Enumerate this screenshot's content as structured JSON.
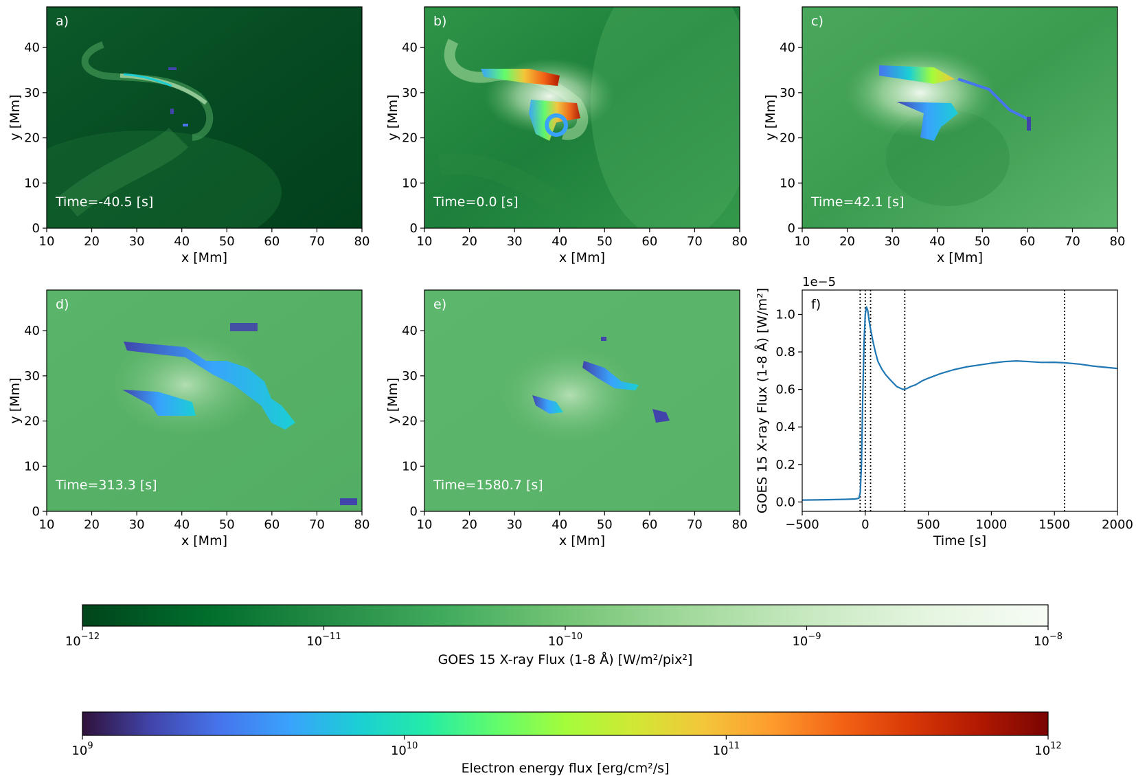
{
  "chart_data": [
    {
      "type": "heatmap",
      "panel_label": "a)",
      "time_label": "Time=-40.5 [s]",
      "xlabel": "x [Mm]",
      "ylabel": "y [Mm]",
      "xlim": [
        10,
        80
      ],
      "ylim": [
        0,
        49
      ],
      "xticks": [
        "10",
        "20",
        "30",
        "40",
        "50",
        "60",
        "70",
        "80"
      ],
      "yticks": [
        "0",
        "10",
        "20",
        "30",
        "40"
      ]
    },
    {
      "type": "heatmap",
      "panel_label": "b)",
      "time_label": "Time=0.0 [s]",
      "xlabel": "x [Mm]",
      "ylabel": "y [Mm]",
      "xlim": [
        10,
        80
      ],
      "ylim": [
        0,
        49
      ],
      "xticks": [
        "10",
        "20",
        "30",
        "40",
        "50",
        "60",
        "70",
        "80"
      ],
      "yticks": [
        "0",
        "10",
        "20",
        "30",
        "40"
      ]
    },
    {
      "type": "heatmap",
      "panel_label": "c)",
      "time_label": "Time=42.1 [s]",
      "xlabel": "x [Mm]",
      "ylabel": "y [Mm]",
      "xlim": [
        10,
        80
      ],
      "ylim": [
        0,
        49
      ],
      "xticks": [
        "10",
        "20",
        "30",
        "40",
        "50",
        "60",
        "70",
        "80"
      ],
      "yticks": [
        "0",
        "10",
        "20",
        "30",
        "40"
      ]
    },
    {
      "type": "heatmap",
      "panel_label": "d)",
      "time_label": "Time=313.3 [s]",
      "xlabel": "x [Mm]",
      "ylabel": "y [Mm]",
      "xlim": [
        10,
        80
      ],
      "ylim": [
        0,
        49
      ],
      "xticks": [
        "10",
        "20",
        "30",
        "40",
        "50",
        "60",
        "70",
        "80"
      ],
      "yticks": [
        "0",
        "10",
        "20",
        "30",
        "40"
      ]
    },
    {
      "type": "heatmap",
      "panel_label": "e)",
      "time_label": "Time=1580.7 [s]",
      "xlabel": "x [Mm]",
      "ylabel": "y [Mm]",
      "xlim": [
        10,
        80
      ],
      "ylim": [
        0,
        49
      ],
      "xticks": [
        "10",
        "20",
        "30",
        "40",
        "50",
        "60",
        "70",
        "80"
      ],
      "yticks": [
        "0",
        "10",
        "20",
        "30",
        "40"
      ]
    },
    {
      "type": "line",
      "panel_label": "f)",
      "xlabel": "Time [s]",
      "ylabel": "GOES 15 X-ray Flux (1-8 Å) [W/m²]",
      "offset_label": "1e−5",
      "xlim": [
        -500,
        2000
      ],
      "ylim": [
        -0.05,
        1.13
      ],
      "xticks": [
        "−500",
        "0",
        "500",
        "1000",
        "1500",
        "2000"
      ],
      "yticks": [
        "0.0",
        "0.2",
        "0.4",
        "0.6",
        "0.8",
        "1.0"
      ],
      "series": [
        {
          "color": "#1f77b4",
          "x": [
            -500,
            -300,
            -150,
            -80,
            -50,
            -40,
            -30,
            -20,
            -10,
            0,
            10,
            20,
            30,
            40,
            60,
            80,
            100,
            130,
            160,
            200,
            250,
            300,
            330,
            360,
            400,
            450,
            500,
            600,
            700,
            800,
            900,
            1000,
            1100,
            1200,
            1300,
            1400,
            1500,
            1580,
            1700,
            1800,
            1900,
            2000
          ],
          "y": [
            0.01,
            0.012,
            0.014,
            0.016,
            0.02,
            0.05,
            0.2,
            0.55,
            0.85,
            1.0,
            1.04,
            1.02,
            0.97,
            0.93,
            0.86,
            0.8,
            0.75,
            0.71,
            0.68,
            0.65,
            0.615,
            0.6,
            0.605,
            0.615,
            0.625,
            0.645,
            0.66,
            0.685,
            0.705,
            0.72,
            0.73,
            0.74,
            0.748,
            0.752,
            0.748,
            0.744,
            0.745,
            0.742,
            0.735,
            0.725,
            0.718,
            0.712
          ]
        }
      ],
      "vlines": [
        -40.5,
        0.0,
        42.1,
        313.3,
        1580.7
      ]
    }
  ],
  "colorbars": [
    {
      "label": "GOES 15 X-ray Flux (1-8 Å) [W/m²/pix²]",
      "scale": "log",
      "range": [
        1e-12,
        1e-08
      ],
      "ticks": [
        {
          "base": "10",
          "exp": "−12"
        },
        {
          "base": "10",
          "exp": "−11"
        },
        {
          "base": "10",
          "exp": "−10"
        },
        {
          "base": "10",
          "exp": "−9"
        },
        {
          "base": "10",
          "exp": "−8"
        }
      ],
      "colors": [
        "#00441b",
        "#006d2c",
        "#238b45",
        "#41ab5d",
        "#74c476",
        "#a1d99b",
        "#c7e9c0",
        "#e5f5e0",
        "#f7fcf5"
      ]
    },
    {
      "label": "Electron energy flux [erg/cm²/s]",
      "scale": "log",
      "range": [
        1000000000.0,
        1000000000000.0
      ],
      "ticks": [
        {
          "base": "10",
          "exp": "9"
        },
        {
          "base": "10",
          "exp": "10"
        },
        {
          "base": "10",
          "exp": "11"
        },
        {
          "base": "10",
          "exp": "12"
        }
      ],
      "colors": [
        "#30123b",
        "#4145ab",
        "#4675ed",
        "#39a2fc",
        "#1bcfd4",
        "#24eca6",
        "#61fc6c",
        "#a4fc3b",
        "#d1e834",
        "#f3c63a",
        "#fe9b2d",
        "#f36315",
        "#d93806",
        "#b11901",
        "#7a0403"
      ]
    }
  ]
}
